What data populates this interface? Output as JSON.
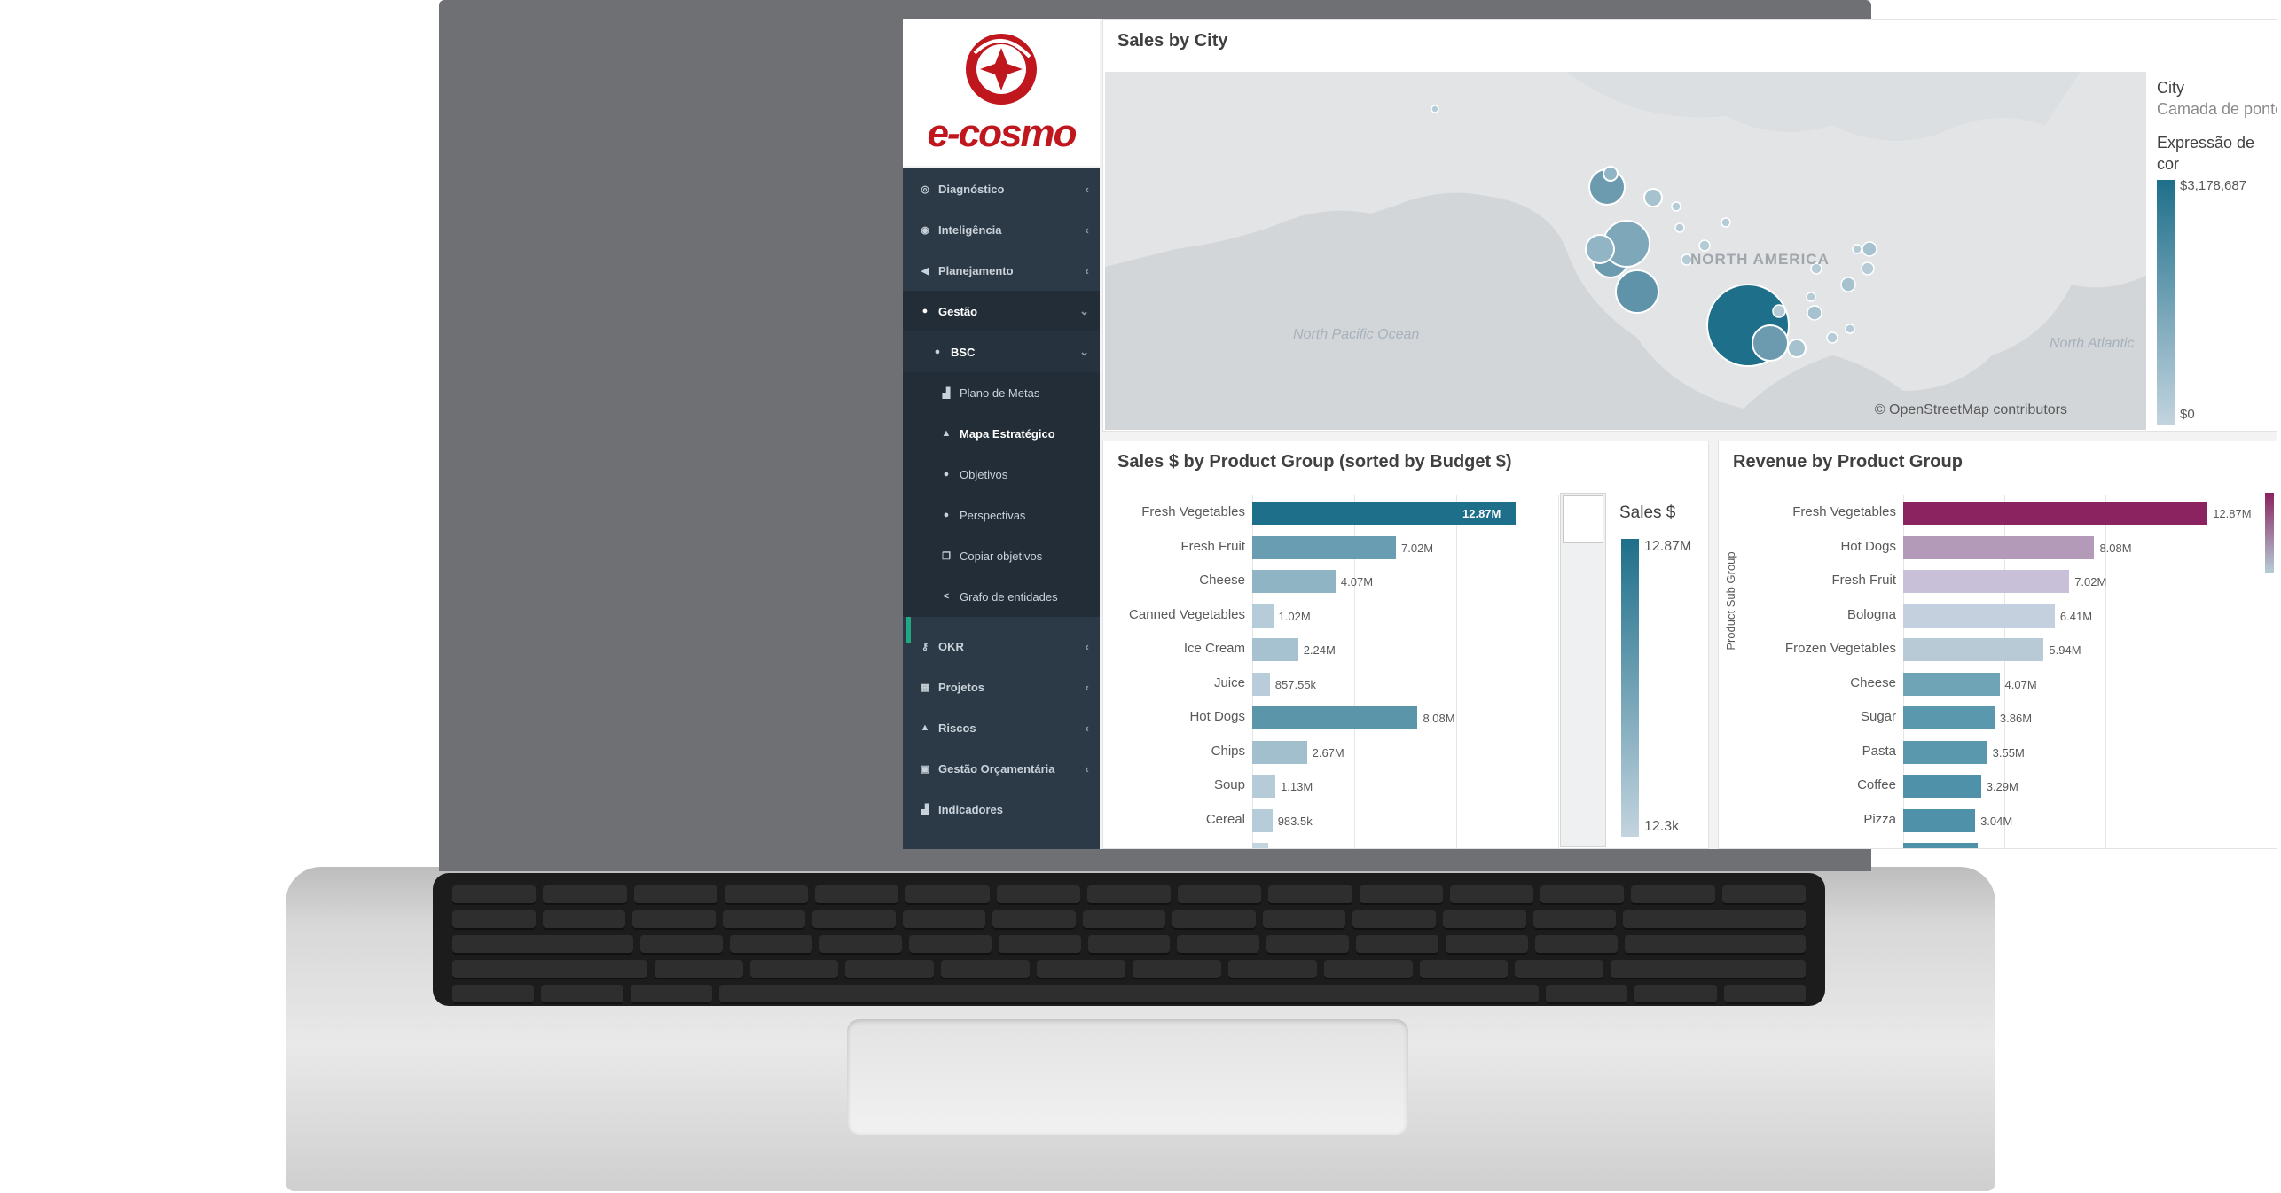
{
  "brand": {
    "logo_text": "e-cosmo",
    "logo_color": "#c0161d"
  },
  "sidebar": {
    "items": [
      {
        "label": "Diagnóstico",
        "icon": "target-icon"
      },
      {
        "label": "Inteligência",
        "icon": "eye-icon"
      },
      {
        "label": "Planejamento",
        "icon": "megaphone-icon"
      },
      {
        "label": "Gestão",
        "icon": "globe-icon"
      },
      {
        "label": "BSC",
        "icon": "globe-icon"
      },
      {
        "label": "Plano de Metas",
        "icon": "bar-chart-icon"
      },
      {
        "label": "Mapa Estratégico",
        "icon": "sitemap-icon"
      },
      {
        "label": "Objetivos",
        "icon": "circle-icon"
      },
      {
        "label": "Perspectivas",
        "icon": "circle-icon"
      },
      {
        "label": "Copiar objetivos",
        "icon": "copy-icon"
      },
      {
        "label": "Grafo de entidades",
        "icon": "share-icon"
      },
      {
        "label": "OKR",
        "icon": "key-icon"
      },
      {
        "label": "Projetos",
        "icon": "table-icon"
      },
      {
        "label": "Riscos",
        "icon": "warning-icon"
      },
      {
        "label": "Gestão Orçamentária",
        "icon": "money-icon"
      },
      {
        "label": "Indicadores",
        "icon": "bar-chart-icon"
      }
    ]
  },
  "map_panel": {
    "title": "Sales by City",
    "labels": {
      "continent": "NORTH AMERICA",
      "pacific": "North Pacific Ocean",
      "atlantic": "North Atlantic"
    },
    "attribution": "© OpenStreetMap contributors",
    "legend": {
      "field": "City",
      "layer": "Camada de pontos",
      "color_title": "Expressão de cor",
      "max": "$3,178,687",
      "min": "$0"
    }
  },
  "chart_data": [
    {
      "type": "bar",
      "orientation": "horizontal",
      "title": "Sales $ by Product Group (sorted by Budget $)",
      "categories": [
        "Fresh Vegetables",
        "Fresh Fruit",
        "Cheese",
        "Canned Vegetables",
        "Ice Cream",
        "Juice",
        "Hot Dogs",
        "Chips",
        "Soup",
        "Cereal"
      ],
      "values": [
        12870000,
        7020000,
        4070000,
        1020000,
        2240000,
        857550,
        8080000,
        2670000,
        1130000,
        983500
      ],
      "value_labels": [
        "12.87M",
        "7.02M",
        "4.07M",
        "1.02M",
        "2.24M",
        "857.55k",
        "8.08M",
        "2.67M",
        "1.13M",
        "983.5k"
      ],
      "xlim": [
        0,
        13000000
      ],
      "color_max": "#1e6f8a",
      "color_min": "#c3d4df",
      "legend": {
        "title": "Sales $",
        "max": "12.87M",
        "min": "12.3k"
      }
    },
    {
      "type": "bar",
      "orientation": "horizontal",
      "title": "Revenue by Product Group",
      "ylabel": "Product Sub Group",
      "categories": [
        "Fresh Vegetables",
        "Hot Dogs",
        "Fresh Fruit",
        "Bologna",
        "Frozen Vegetables",
        "Cheese",
        "Sugar",
        "Pasta",
        "Coffee",
        "Pizza"
      ],
      "values": [
        12870000,
        8080000,
        7020000,
        6410000,
        5940000,
        4070000,
        3860000,
        3550000,
        3290000,
        3040000
      ],
      "value_labels": [
        "12.87M",
        "8.08M",
        "7.02M",
        "6.41M",
        "5.94M",
        "4.07M",
        "3.86M",
        "3.55M",
        "3.29M",
        "3.04M"
      ],
      "xlim": [
        0,
        13500000
      ],
      "colors": [
        "#8a2360",
        "#b39ab8",
        "#c8c0d8",
        "#c5d0df",
        "#b7cad6",
        "#6fa3b6",
        "#5a98ad",
        "#5a98ad",
        "#4f91a8",
        "#4f91a8"
      ]
    }
  ]
}
